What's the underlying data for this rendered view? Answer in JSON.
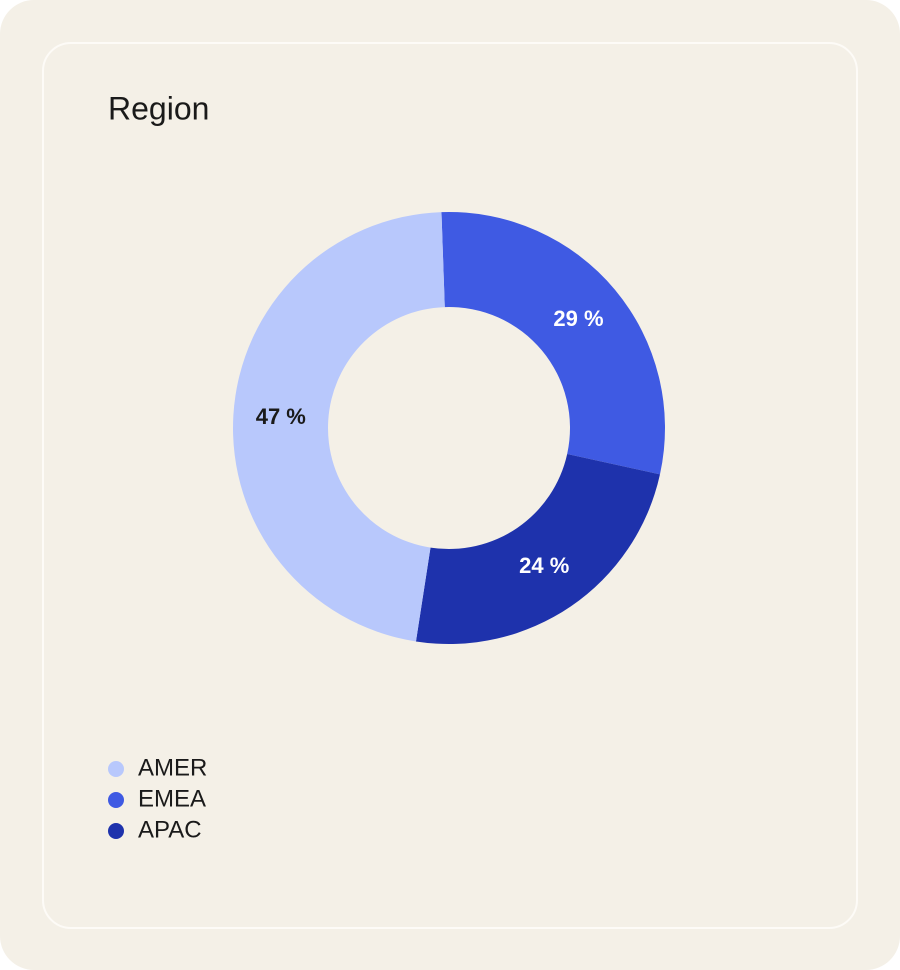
{
  "chart_data": {
    "type": "donut",
    "title": "Region",
    "categories": [
      "AMER",
      "EMEA",
      "APAC"
    ],
    "values": [
      47,
      29,
      24
    ],
    "value_labels": [
      "47 %",
      "29 %",
      "24 %"
    ],
    "colors": [
      "#b8c8fc",
      "#3f5ae3",
      "#1e32ac"
    ]
  }
}
